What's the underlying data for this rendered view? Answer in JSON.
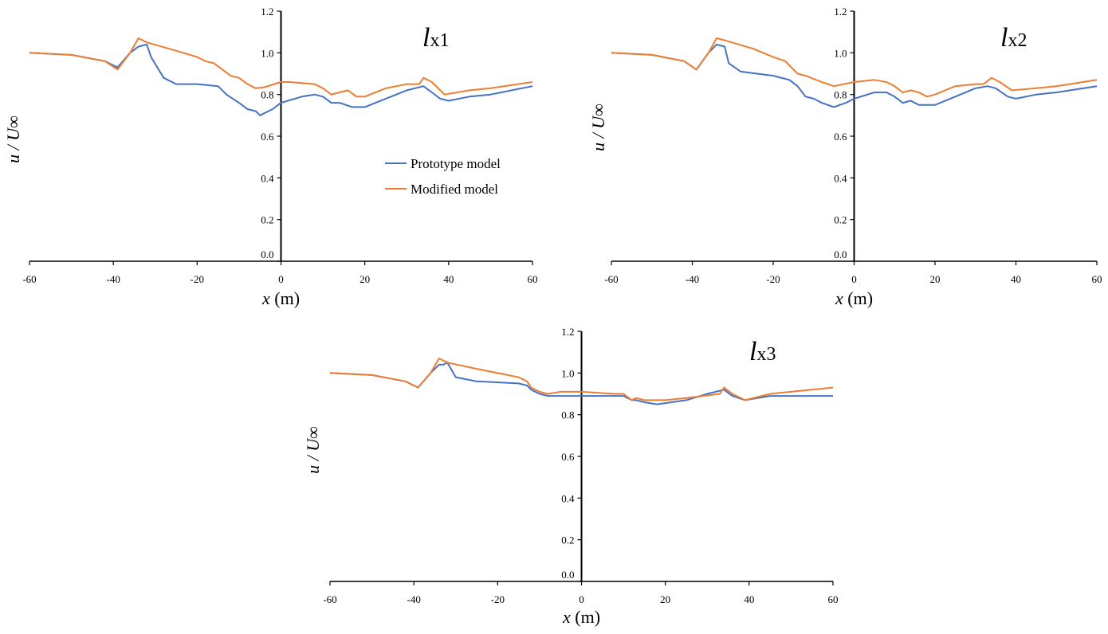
{
  "colors": {
    "prototype": "#4472C4",
    "modified": "#ED7D31"
  },
  "chart_data": [
    {
      "type": "line",
      "title_main": "l",
      "title_sub": "x1",
      "xlabel_var": "x",
      "xlabel_unit": " (m)",
      "ylabel": "u / U∞",
      "xlim": [
        -60,
        60
      ],
      "ylim": [
        0,
        1.2
      ],
      "xticks": [
        "-60",
        "-40",
        "-20",
        "0",
        "20",
        "40",
        "60"
      ],
      "yticks": [
        "0.0",
        "0.2",
        "0.4",
        "0.6",
        "0.8",
        "1.0",
        "1.2"
      ],
      "legend": {
        "placement": "center-right",
        "entries": [
          "Prototype model",
          "Modified model"
        ]
      },
      "series": [
        {
          "name": "Prototype model",
          "points": [
            [
              -60,
              1.0
            ],
            [
              -50,
              0.99
            ],
            [
              -42,
              0.96
            ],
            [
              -39,
              0.93
            ],
            [
              -36,
              1.0
            ],
            [
              -34,
              1.03
            ],
            [
              -32,
              1.04
            ],
            [
              -31,
              0.98
            ],
            [
              -28,
              0.88
            ],
            [
              -25,
              0.85
            ],
            [
              -20,
              0.85
            ],
            [
              -15,
              0.84
            ],
            [
              -13,
              0.8
            ],
            [
              -10,
              0.76
            ],
            [
              -8,
              0.73
            ],
            [
              -6,
              0.72
            ],
            [
              -5,
              0.7
            ],
            [
              -2,
              0.73
            ],
            [
              0,
              0.76
            ],
            [
              5,
              0.79
            ],
            [
              8,
              0.8
            ],
            [
              10,
              0.79
            ],
            [
              12,
              0.76
            ],
            [
              14,
              0.76
            ],
            [
              17,
              0.74
            ],
            [
              20,
              0.74
            ],
            [
              25,
              0.78
            ],
            [
              30,
              0.82
            ],
            [
              34,
              0.84
            ],
            [
              36,
              0.81
            ],
            [
              38,
              0.78
            ],
            [
              40,
              0.77
            ],
            [
              45,
              0.79
            ],
            [
              50,
              0.8
            ],
            [
              55,
              0.82
            ],
            [
              60,
              0.84
            ]
          ]
        },
        {
          "name": "Modified model",
          "points": [
            [
              -60,
              1.0
            ],
            [
              -50,
              0.99
            ],
            [
              -42,
              0.96
            ],
            [
              -39,
              0.92
            ],
            [
              -36,
              1.0
            ],
            [
              -34,
              1.07
            ],
            [
              -32,
              1.05
            ],
            [
              -25,
              1.01
            ],
            [
              -20,
              0.98
            ],
            [
              -18,
              0.96
            ],
            [
              -16,
              0.95
            ],
            [
              -12,
              0.89
            ],
            [
              -10,
              0.88
            ],
            [
              -8,
              0.85
            ],
            [
              -6,
              0.83
            ],
            [
              -4,
              0.835
            ],
            [
              0,
              0.86
            ],
            [
              2,
              0.86
            ],
            [
              8,
              0.85
            ],
            [
              10,
              0.83
            ],
            [
              12,
              0.8
            ],
            [
              14,
              0.81
            ],
            [
              16,
              0.82
            ],
            [
              18,
              0.79
            ],
            [
              20,
              0.79
            ],
            [
              25,
              0.83
            ],
            [
              30,
              0.85
            ],
            [
              33,
              0.85
            ],
            [
              34,
              0.88
            ],
            [
              36,
              0.86
            ],
            [
              39,
              0.8
            ],
            [
              45,
              0.82
            ],
            [
              50,
              0.83
            ],
            [
              60,
              0.86
            ]
          ]
        }
      ]
    },
    {
      "type": "line",
      "title_main": "l",
      "title_sub": "x2",
      "xlabel_var": "x",
      "xlabel_unit": " (m)",
      "ylabel": "u / U∞",
      "xlim": [
        -60,
        60
      ],
      "ylim": [
        0,
        1.2
      ],
      "xticks": [
        "-60",
        "-40",
        "-20",
        "0",
        "20",
        "40",
        "60"
      ],
      "yticks": [
        "0.0",
        "0.2",
        "0.4",
        "0.6",
        "0.8",
        "1.0",
        "1.2"
      ],
      "series": [
        {
          "name": "Prototype model",
          "points": [
            [
              -60,
              1.0
            ],
            [
              -50,
              0.99
            ],
            [
              -42,
              0.96
            ],
            [
              -39,
              0.92
            ],
            [
              -36,
              1.0
            ],
            [
              -34,
              1.04
            ],
            [
              -32,
              1.03
            ],
            [
              -31,
              0.95
            ],
            [
              -28,
              0.91
            ],
            [
              -20,
              0.89
            ],
            [
              -16,
              0.87
            ],
            [
              -14,
              0.84
            ],
            [
              -12,
              0.79
            ],
            [
              -10,
              0.78
            ],
            [
              -8,
              0.76
            ],
            [
              -5,
              0.74
            ],
            [
              -2,
              0.76
            ],
            [
              0,
              0.78
            ],
            [
              5,
              0.81
            ],
            [
              8,
              0.81
            ],
            [
              10,
              0.79
            ],
            [
              12,
              0.76
            ],
            [
              14,
              0.77
            ],
            [
              16,
              0.75
            ],
            [
              20,
              0.75
            ],
            [
              25,
              0.79
            ],
            [
              30,
              0.83
            ],
            [
              33,
              0.84
            ],
            [
              35,
              0.83
            ],
            [
              38,
              0.79
            ],
            [
              40,
              0.78
            ],
            [
              45,
              0.8
            ],
            [
              50,
              0.81
            ],
            [
              60,
              0.84
            ]
          ]
        },
        {
          "name": "Modified model",
          "points": [
            [
              -60,
              1.0
            ],
            [
              -50,
              0.99
            ],
            [
              -42,
              0.96
            ],
            [
              -39,
              0.92
            ],
            [
              -36,
              1.0
            ],
            [
              -34,
              1.07
            ],
            [
              -32,
              1.06
            ],
            [
              -25,
              1.02
            ],
            [
              -20,
              0.98
            ],
            [
              -17,
              0.96
            ],
            [
              -14,
              0.9
            ],
            [
              -12,
              0.89
            ],
            [
              -8,
              0.86
            ],
            [
              -5,
              0.84
            ],
            [
              0,
              0.86
            ],
            [
              5,
              0.87
            ],
            [
              8,
              0.86
            ],
            [
              10,
              0.84
            ],
            [
              12,
              0.81
            ],
            [
              14,
              0.82
            ],
            [
              16,
              0.81
            ],
            [
              18,
              0.79
            ],
            [
              20,
              0.8
            ],
            [
              25,
              0.84
            ],
            [
              30,
              0.85
            ],
            [
              32,
              0.85
            ],
            [
              34,
              0.88
            ],
            [
              36,
              0.86
            ],
            [
              39,
              0.82
            ],
            [
              45,
              0.83
            ],
            [
              50,
              0.84
            ],
            [
              60,
              0.87
            ]
          ]
        }
      ]
    },
    {
      "type": "line",
      "title_main": "l",
      "title_sub": "x3",
      "xlabel_var": "x",
      "xlabel_unit": " (m)",
      "ylabel": "u / U∞",
      "xlim": [
        -60,
        60
      ],
      "ylim": [
        0,
        1.2
      ],
      "xticks": [
        "-60",
        "-40",
        "-20",
        "0",
        "20",
        "40",
        "60"
      ],
      "yticks": [
        "0.0",
        "0.2",
        "0.4",
        "0.6",
        "0.8",
        "1.0",
        "1.2"
      ],
      "series": [
        {
          "name": "Prototype model",
          "points": [
            [
              -60,
              1.0
            ],
            [
              -50,
              0.99
            ],
            [
              -42,
              0.96
            ],
            [
              -39,
              0.93
            ],
            [
              -36,
              1.0
            ],
            [
              -34,
              1.04
            ],
            [
              -33,
              1.04
            ],
            [
              -32,
              1.05
            ],
            [
              -30,
              0.98
            ],
            [
              -25,
              0.96
            ],
            [
              -15,
              0.95
            ],
            [
              -13,
              0.94
            ],
            [
              -12,
              0.92
            ],
            [
              -10,
              0.9
            ],
            [
              -8,
              0.89
            ],
            [
              0,
              0.89
            ],
            [
              10,
              0.89
            ],
            [
              12,
              0.87
            ],
            [
              13,
              0.87
            ],
            [
              15,
              0.86
            ],
            [
              18,
              0.85
            ],
            [
              25,
              0.87
            ],
            [
              30,
              0.9
            ],
            [
              34,
              0.92
            ],
            [
              36,
              0.89
            ],
            [
              39,
              0.87
            ],
            [
              45,
              0.89
            ],
            [
              60,
              0.89
            ]
          ]
        },
        {
          "name": "Modified model",
          "points": [
            [
              -60,
              1.0
            ],
            [
              -50,
              0.99
            ],
            [
              -42,
              0.96
            ],
            [
              -39,
              0.93
            ],
            [
              -36,
              1.0
            ],
            [
              -34,
              1.07
            ],
            [
              -32,
              1.05
            ],
            [
              -25,
              1.02
            ],
            [
              -15,
              0.98
            ],
            [
              -13,
              0.96
            ],
            [
              -12,
              0.93
            ],
            [
              -10,
              0.91
            ],
            [
              -8,
              0.9
            ],
            [
              -5,
              0.91
            ],
            [
              0,
              0.91
            ],
            [
              8,
              0.9
            ],
            [
              10,
              0.9
            ],
            [
              12,
              0.87
            ],
            [
              13,
              0.88
            ],
            [
              15,
              0.87
            ],
            [
              20,
              0.87
            ],
            [
              25,
              0.88
            ],
            [
              33,
              0.9
            ],
            [
              34,
              0.93
            ],
            [
              36,
              0.9
            ],
            [
              39,
              0.87
            ],
            [
              45,
              0.9
            ],
            [
              60,
              0.93
            ]
          ]
        }
      ]
    }
  ]
}
